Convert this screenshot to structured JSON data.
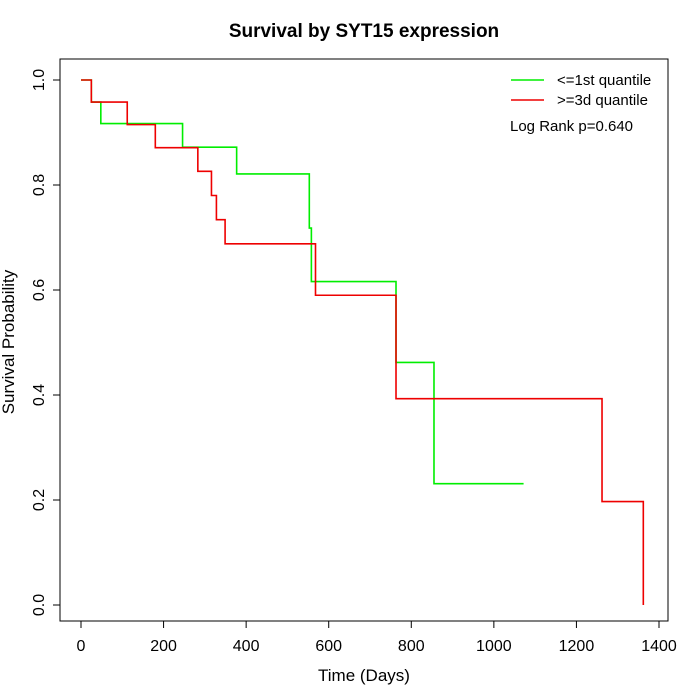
{
  "chart_data": {
    "type": "line",
    "title": "Survival by SYT15 expression",
    "xlabel": "Time (Days)",
    "ylabel": "Survival Probability",
    "xlim": [
      0,
      1400
    ],
    "ylim": [
      0,
      1.0
    ],
    "x_ticks": [
      "0",
      "200",
      "400",
      "600",
      "800",
      "1000",
      "1200",
      "1400"
    ],
    "y_ticks": [
      "0.0",
      "0.2",
      "0.4",
      "0.6",
      "0.8",
      "1.0"
    ],
    "legend_position": "top-right",
    "annotation": "Log Rank p=0.640",
    "series": [
      {
        "name": "<=1st quantile",
        "color": "#00ee00",
        "steps": [
          {
            "x": 0,
            "y": 1.0
          },
          {
            "x": 25,
            "y": 0.958
          },
          {
            "x": 48,
            "y": 0.917
          },
          {
            "x": 246,
            "y": 0.872
          },
          {
            "x": 377,
            "y": 0.821
          },
          {
            "x": 553,
            "y": 0.718
          },
          {
            "x": 558,
            "y": 0.616
          },
          {
            "x": 763,
            "y": 0.462
          },
          {
            "x": 855,
            "y": 0.231
          },
          {
            "x": 1072,
            "y": 0.231
          }
        ]
      },
      {
        "name": ">=3d quantile",
        "color": "#ee0000",
        "steps": [
          {
            "x": 0,
            "y": 1.0
          },
          {
            "x": 25,
            "y": 0.958
          },
          {
            "x": 112,
            "y": 0.915
          },
          {
            "x": 180,
            "y": 0.871
          },
          {
            "x": 283,
            "y": 0.826
          },
          {
            "x": 316,
            "y": 0.78
          },
          {
            "x": 328,
            "y": 0.734
          },
          {
            "x": 349,
            "y": 0.688
          },
          {
            "x": 568,
            "y": 0.59
          },
          {
            "x": 763,
            "y": 0.393
          },
          {
            "x": 1262,
            "y": 0.197
          },
          {
            "x": 1362,
            "y": 0.0
          }
        ]
      }
    ]
  }
}
